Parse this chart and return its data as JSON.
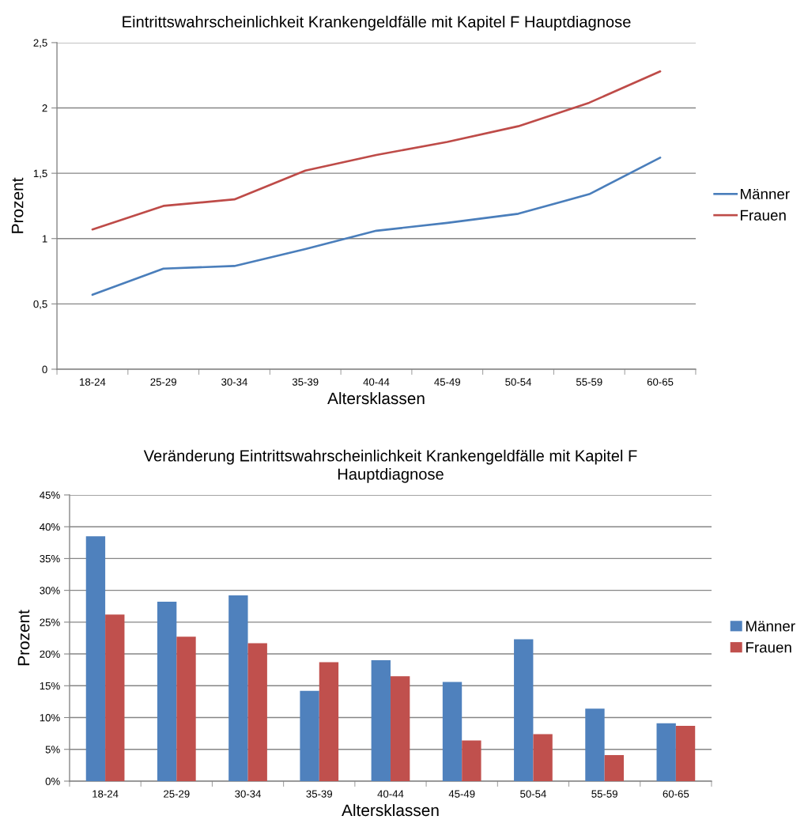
{
  "chart_data": [
    {
      "type": "line",
      "title": "Eintrittswahrscheinlichkeit Krankengeldfälle mit Kapitel F Hauptdiagnose",
      "xlabel": "Altersklassen",
      "ylabel": "Prozent",
      "categories": [
        "18-24",
        "25-29",
        "30-34",
        "35-39",
        "40-44",
        "45-49",
        "50-54",
        "55-59",
        "60-65"
      ],
      "series": [
        {
          "name": "Männer",
          "color": "#4a7ebb",
          "values": [
            0.57,
            0.77,
            0.79,
            0.92,
            1.06,
            1.12,
            1.19,
            1.34,
            1.62
          ]
        },
        {
          "name": "Frauen",
          "color": "#be4b48",
          "values": [
            1.07,
            1.25,
            1.3,
            1.52,
            1.64,
            1.74,
            1.86,
            2.04,
            2.28
          ]
        }
      ],
      "ylim": [
        0,
        2.5
      ],
      "yticks": [
        0,
        {
          "value": 0.5,
          "label": "0,5"
        },
        1,
        {
          "value": 1.5,
          "label": "1,5"
        },
        2,
        {
          "value": 2.5,
          "label": "2,5"
        }
      ],
      "grid": "y",
      "legend": "right",
      "line_style": "solid"
    },
    {
      "type": "bar",
      "title": "Veränderung Eintrittswahrscheinlichkeit Krankengeldfälle mit Kapitel F\nHauptdiagnose",
      "xlabel": "Altersklassen",
      "ylabel": "Prozent",
      "categories": [
        "18-24",
        "25-29",
        "30-34",
        "35-39",
        "40-44",
        "45-49",
        "50-54",
        "55-59",
        "60-65"
      ],
      "series": [
        {
          "name": "Männer",
          "color": "#4f81bd",
          "values": [
            38.5,
            28.2,
            29.2,
            14.2,
            19.0,
            15.6,
            22.3,
            11.4,
            9.1
          ]
        },
        {
          "name": "Frauen",
          "color": "#c0504d",
          "values": [
            26.2,
            22.7,
            21.7,
            18.7,
            16.5,
            6.4,
            7.4,
            4.1,
            8.7
          ]
        }
      ],
      "ylim": [
        0,
        45
      ],
      "yticks": [
        {
          "value": 0,
          "label": "0%"
        },
        {
          "value": 5,
          "label": "5%"
        },
        {
          "value": 10,
          "label": "10%"
        },
        {
          "value": 15,
          "label": "15%"
        },
        {
          "value": 20,
          "label": "20%"
        },
        {
          "value": 25,
          "label": "25%"
        },
        {
          "value": 30,
          "label": "30%"
        },
        {
          "value": 35,
          "label": "35%"
        },
        {
          "value": 40,
          "label": "40%"
        },
        {
          "value": 45,
          "label": "45%"
        }
      ],
      "grid": "y",
      "legend": "right"
    }
  ]
}
